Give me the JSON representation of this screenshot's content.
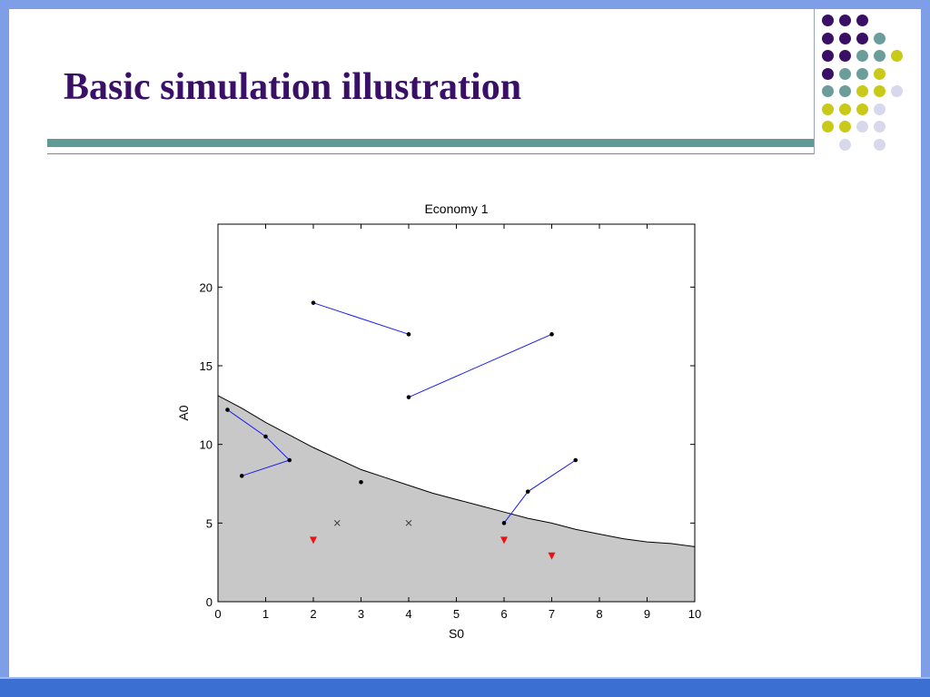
{
  "slide": {
    "title": "Basic simulation illustration",
    "colors": {
      "title": "#3a1066",
      "frame": "#7f9ee8",
      "frame_bottom": "#3b6fd1",
      "teal_bar": "#5f9a96"
    },
    "decorative_dot_grid": {
      "rows": [
        [
          "purple",
          "purple",
          "purple",
          null,
          null
        ],
        [
          "purple",
          "purple",
          "purple",
          "teal",
          null
        ],
        [
          "purple",
          "purple",
          "teal",
          "teal",
          "lime"
        ],
        [
          "purple",
          "teal",
          "teal",
          "lime",
          null
        ],
        [
          "teal",
          "teal",
          "lime",
          "lime",
          "lavender"
        ],
        [
          "lime",
          "lime",
          "lime",
          "lavender",
          null
        ],
        [
          "lime",
          "lime",
          "lavender",
          "lavender",
          null
        ],
        [
          null,
          "lavender",
          null,
          "lavender",
          null
        ]
      ],
      "palette": {
        "purple": "#3a1066",
        "teal": "#6b9e9b",
        "lime": "#c9c91a",
        "lavender": "#d8d8ec"
      }
    }
  },
  "chart_data": {
    "type": "scatter",
    "title": "Economy 1",
    "xlabel": "S0",
    "ylabel": "A0",
    "xlim": [
      0,
      10
    ],
    "ylim": [
      0,
      24
    ],
    "xticks": [
      0,
      1,
      2,
      3,
      4,
      5,
      6,
      7,
      8,
      9,
      10
    ],
    "yticks": [
      0,
      5,
      10,
      15,
      20
    ],
    "boundary_curve": {
      "x": [
        0,
        0.5,
        1,
        1.5,
        2,
        2.5,
        3,
        3.5,
        4,
        4.5,
        5,
        5.5,
        6,
        6.5,
        7,
        7.5,
        8,
        8.5,
        9,
        9.5,
        10
      ],
      "y": [
        13.1,
        12.3,
        11.4,
        10.6,
        9.8,
        9.1,
        8.4,
        7.9,
        7.4,
        6.9,
        6.5,
        6.1,
        5.7,
        5.3,
        5.0,
        4.6,
        4.3,
        4.0,
        3.8,
        3.7,
        3.5
      ],
      "fill_color": "#c8c8c8"
    },
    "paths": [
      {
        "x": [
          2,
          4
        ],
        "y": [
          19,
          17
        ]
      },
      {
        "x": [
          4,
          7
        ],
        "y": [
          13,
          17
        ]
      },
      {
        "x": [
          0.2,
          1,
          1.5,
          0.5
        ],
        "y": [
          12.2,
          10.5,
          9,
          8
        ]
      },
      {
        "x": [
          6,
          6.5,
          7.5
        ],
        "y": [
          5,
          7,
          9
        ]
      }
    ],
    "points": {
      "x": [
        3
      ],
      "y": [
        7.6
      ]
    },
    "x_markers": {
      "x": [
        2.5,
        4
      ],
      "y": [
        5,
        5
      ]
    },
    "triangles": {
      "x": [
        2,
        6,
        7
      ],
      "y": [
        3.9,
        3.9,
        2.9
      ],
      "color": "#ee1111"
    },
    "line_color": "#1a1aee"
  }
}
